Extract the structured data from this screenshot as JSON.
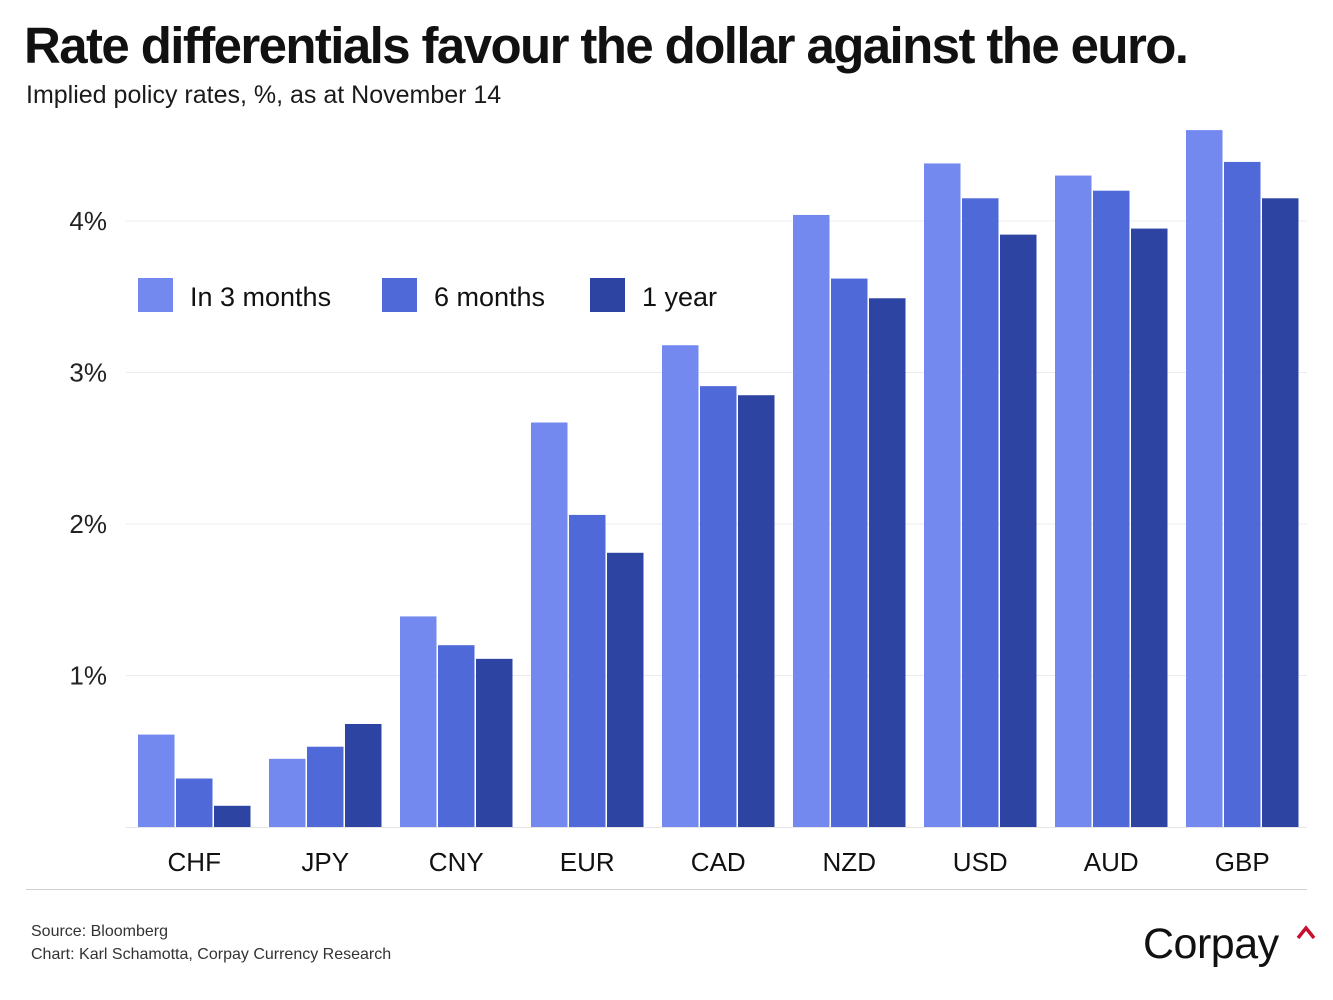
{
  "title": "Rate differentials favour the dollar against the euro.",
  "subtitle": "Implied policy rates, %, as at November 14",
  "footer": {
    "source": "Source: Bloomberg",
    "credit": "Chart: Karl Schamotta, Corpay Currency Research",
    "brand": "Corpay"
  },
  "chart_data": {
    "type": "bar",
    "title": "Rate differentials favour the dollar against the euro.",
    "subtitle": "Implied policy rates, %, as at November 14",
    "categories": [
      "CHF",
      "JPY",
      "CNY",
      "EUR",
      "CAD",
      "NZD",
      "USD",
      "AUD",
      "GBP"
    ],
    "series": [
      {
        "name": "In 3 months",
        "color": "#7389f0",
        "values": [
          0.61,
          0.45,
          1.39,
          2.67,
          3.18,
          4.04,
          4.38,
          4.3,
          4.6
        ]
      },
      {
        "name": "6 months",
        "color": "#5069d8",
        "values": [
          0.32,
          0.53,
          1.2,
          2.06,
          2.91,
          3.62,
          4.15,
          4.2,
          4.39
        ]
      },
      {
        "name": "1 year",
        "color": "#2e44a3",
        "values": [
          0.14,
          0.68,
          1.11,
          1.81,
          2.85,
          3.49,
          3.91,
          3.95,
          4.15
        ]
      }
    ],
    "yticks": [
      1,
      2,
      3,
      4
    ],
    "ytick_labels": [
      "1%",
      "2%",
      "3%",
      "4%"
    ],
    "ylim": [
      0,
      4.7
    ],
    "grid": true,
    "legend": "top-left"
  }
}
